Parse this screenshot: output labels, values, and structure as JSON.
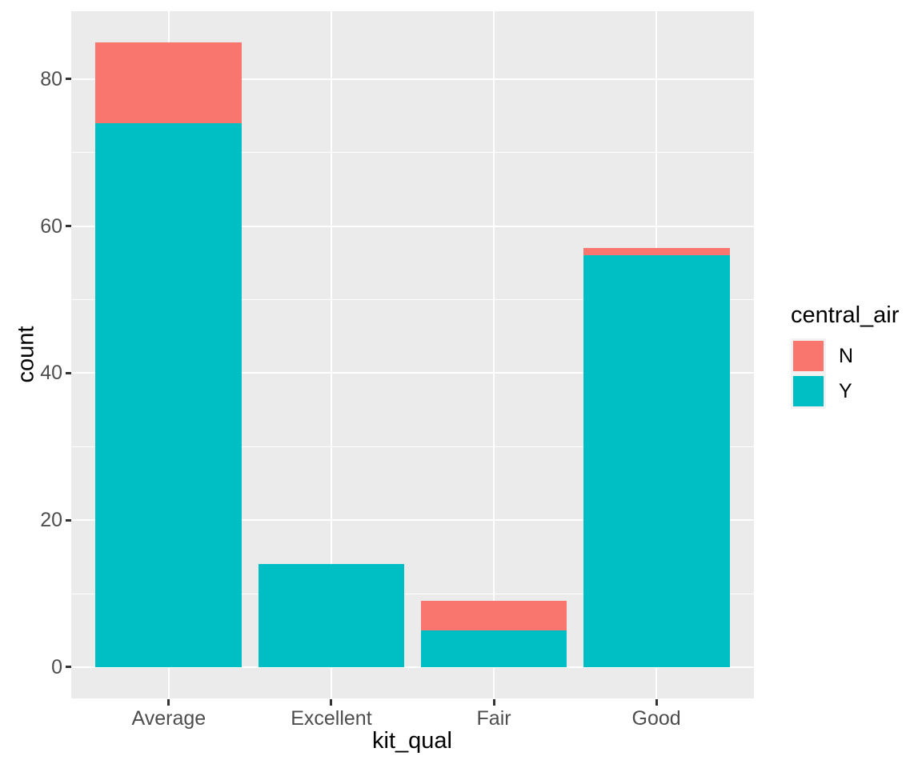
{
  "chart_data": {
    "type": "bar",
    "stacked": true,
    "title": "",
    "xlabel": "kit_qual",
    "ylabel": "count",
    "categories": [
      "Average",
      "Excellent",
      "Fair",
      "Good"
    ],
    "series": [
      {
        "name": "N",
        "color": "#F8766D",
        "values": [
          11,
          0,
          4,
          1
        ]
      },
      {
        "name": "Y",
        "color": "#00BFC4",
        "values": [
          74,
          14,
          5,
          56
        ]
      }
    ],
    "totals": [
      85,
      14,
      9,
      57
    ],
    "ylim": [
      -4.25,
      89.25
    ],
    "y_major_ticks": [
      0,
      20,
      40,
      60,
      80
    ],
    "y_minor_ticks": [
      10,
      30,
      50,
      70
    ],
    "grid": "horizontal major+minor, vertical major at category centers",
    "legend": {
      "title": "central_air",
      "position": "right",
      "entries": [
        {
          "label": "N",
          "color": "#F8766D"
        },
        {
          "label": "Y",
          "color": "#00BFC4"
        }
      ]
    }
  },
  "style": {
    "panel_bg": "#EBEBEB",
    "grid_color": "#FFFFFF",
    "tick_label_color": "#4D4D4D",
    "axis_title_color": "#000000",
    "tick_mark_color": "#333333",
    "legend_key_bg": "#F2F2F2",
    "page_bg": "#FFFFFF"
  }
}
